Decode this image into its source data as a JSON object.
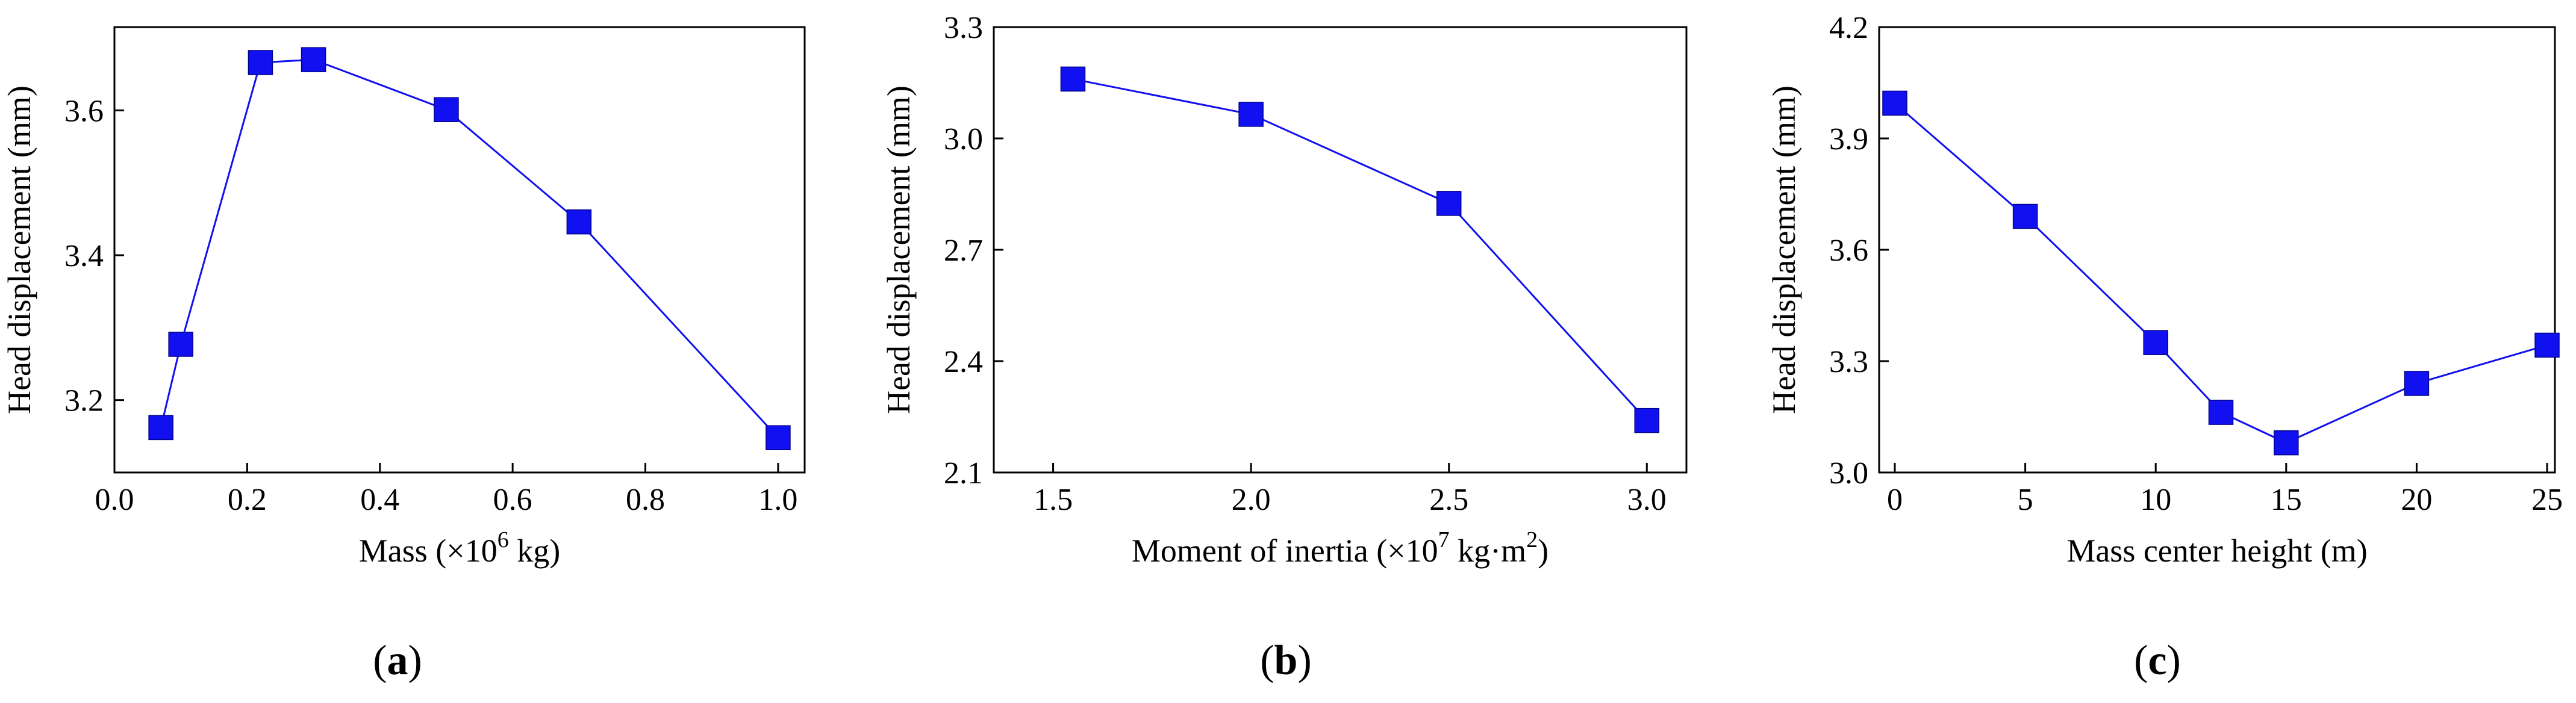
{
  "colors": {
    "series": "#1010f0",
    "axis": "#000000"
  },
  "chart_data": [
    {
      "type": "line",
      "caption_letter": "a",
      "xlabel": "Mass (×10",
      "xlabel_sup": "6",
      "xlabel_after": " kg)",
      "ylabel": "Head displacement (mm)",
      "xlim": [
        0.0,
        1.04
      ],
      "ylim": [
        3.1,
        3.715
      ],
      "xticks": [
        0.0,
        0.2,
        0.4,
        0.6,
        0.8,
        1.0
      ],
      "xtick_labels": [
        "0.0",
        "0.2",
        "0.4",
        "0.6",
        "0.8",
        "1.0"
      ],
      "yticks": [
        3.2,
        3.4,
        3.6
      ],
      "ytick_labels": [
        "3.2",
        "3.4",
        "3.6"
      ],
      "x": [
        0.07,
        0.1,
        0.22,
        0.3,
        0.5,
        0.7,
        1.0
      ],
      "y": [
        3.162,
        3.277,
        3.666,
        3.67,
        3.601,
        3.446,
        3.148
      ]
    },
    {
      "type": "line",
      "caption_letter": "b",
      "xlabel": "Moment of inertia (×10",
      "xlabel_sup": "7",
      "xlabel_after": " kg·m",
      "xlabel_sup2": "2",
      "xlabel_end": ")",
      "ylabel": "Head displacement (mm)",
      "xlim": [
        1.35,
        3.1
      ],
      "ylim": [
        2.1,
        3.3
      ],
      "xticks": [
        1.5,
        2.0,
        2.5,
        3.0
      ],
      "xtick_labels": [
        "1.5",
        "2.0",
        "2.5",
        "3.0"
      ],
      "yticks": [
        2.1,
        2.4,
        2.7,
        3.0,
        3.3
      ],
      "ytick_labels": [
        "2.1",
        "2.4",
        "2.7",
        "3.0",
        "3.3"
      ],
      "x": [
        1.55,
        2.0,
        2.5,
        3.0
      ],
      "y": [
        3.16,
        3.065,
        2.825,
        2.24
      ]
    },
    {
      "type": "line",
      "caption_letter": "c",
      "xlabel": "Mass center height (m)",
      "ylabel": "Head displacement (mm)",
      "xlim": [
        -0.6,
        25.3
      ],
      "ylim": [
        3.0,
        4.2
      ],
      "xticks": [
        0,
        5,
        10,
        15,
        20,
        25
      ],
      "xtick_labels": [
        "0",
        "5",
        "10",
        "15",
        "20",
        "25"
      ],
      "yticks": [
        3.0,
        3.3,
        3.6,
        3.9,
        4.2
      ],
      "ytick_labels": [
        "3.0",
        "3.3",
        "3.6",
        "3.9",
        "4.2"
      ],
      "x": [
        0,
        5,
        10,
        12.5,
        15,
        20,
        25
      ],
      "y": [
        3.995,
        3.69,
        3.35,
        3.162,
        3.08,
        3.24,
        3.343
      ]
    }
  ]
}
